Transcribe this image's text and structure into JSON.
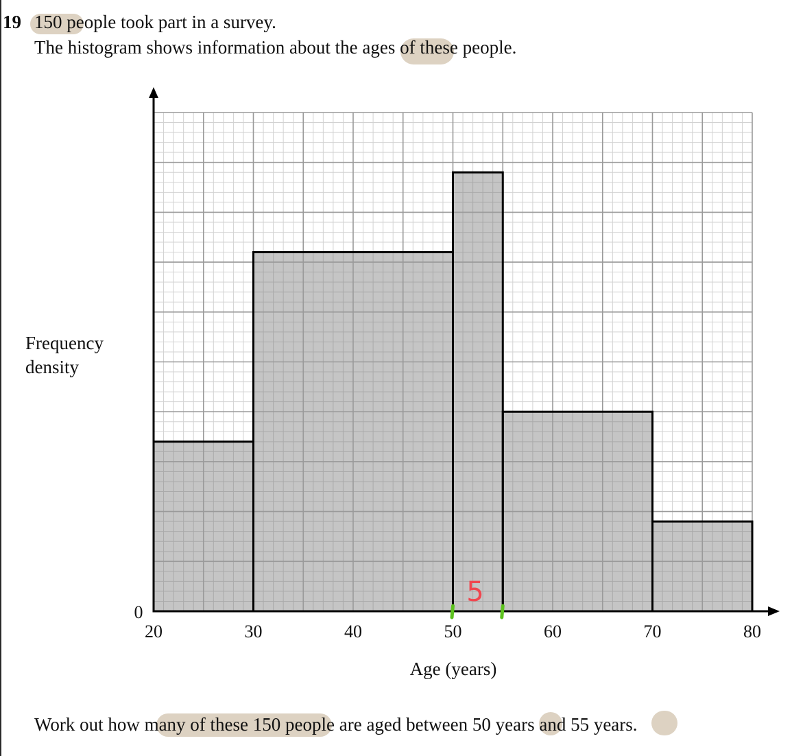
{
  "question": {
    "number": "19",
    "line1": "150 people took part in a survey.",
    "line2": "The histogram shows information about the ages of these people.",
    "task": "Work out how many of these 150 people are aged between 50 years and 55 years."
  },
  "annotation": {
    "handwritten_width": "5",
    "handwritten_color": "#f0464f",
    "tick_color": "#5cc21e"
  },
  "colors": {
    "bar_fill": "#c0c0c0",
    "grid_major": "#9a9a9a",
    "grid_minor": "#d2d2d2",
    "highlight": "#d9cdbb"
  },
  "chart_data": {
    "type": "bar",
    "subtype": "histogram",
    "xlabel": "Age (years)",
    "ylabel_lines": [
      "Frequency",
      "density"
    ],
    "x_ticks": [
      "20",
      "30",
      "40",
      "50",
      "60",
      "70",
      "80"
    ],
    "y_ticks": [
      "0"
    ],
    "xlim": [
      20,
      80
    ],
    "ylim_grid_squares": [
      0,
      10
    ],
    "grid": true,
    "bins": [
      {
        "from": 20,
        "to": 30,
        "height_grid_squares": 3.4
      },
      {
        "from": 30,
        "to": 50,
        "height_grid_squares": 7.2
      },
      {
        "from": 50,
        "to": 55,
        "height_grid_squares": 8.8
      },
      {
        "from": 55,
        "to": 70,
        "height_grid_squares": 4.0
      },
      {
        "from": 70,
        "to": 80,
        "height_grid_squares": 1.8
      }
    ],
    "marked_interval": [
      50,
      55
    ]
  }
}
